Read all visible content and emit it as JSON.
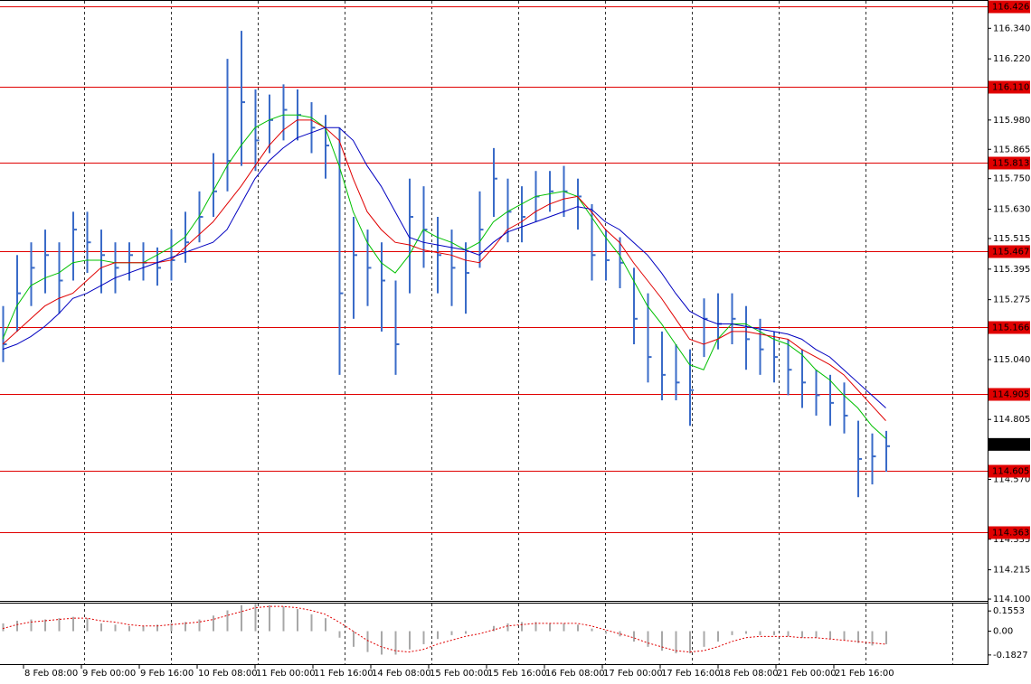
{
  "chart_data": [
    {
      "type": "ohlc",
      "color": "#3a6bc8",
      "high": [
        115.25,
        115.45,
        115.5,
        115.55,
        115.5,
        115.62,
        115.62,
        115.55,
        115.5,
        115.5,
        115.5,
        115.48,
        115.55,
        115.62,
        115.7,
        115.85,
        116.22,
        116.33,
        116.1,
        116.08,
        116.12,
        116.1,
        116.05,
        116.0,
        115.95,
        115.6,
        115.55,
        115.5,
        115.35,
        115.75,
        115.72,
        115.6,
        115.55,
        115.5,
        115.7,
        115.87,
        115.75,
        115.72,
        115.78,
        115.78,
        115.8,
        115.75,
        115.65,
        115.55,
        115.52,
        115.4,
        115.3,
        115.15,
        115.1,
        115.08,
        115.28,
        115.3,
        115.3,
        115.25,
        115.2,
        115.15,
        115.12,
        115.08,
        115.0,
        114.98,
        114.95,
        114.8,
        114.75,
        114.76
      ],
      "low": [
        115.03,
        115.15,
        115.25,
        115.3,
        115.22,
        115.35,
        115.38,
        115.3,
        115.3,
        115.35,
        115.35,
        115.33,
        115.35,
        115.42,
        115.5,
        115.6,
        115.7,
        115.8,
        115.78,
        115.85,
        115.9,
        115.9,
        115.85,
        115.75,
        114.98,
        115.2,
        115.25,
        115.15,
        114.98,
        115.3,
        115.4,
        115.3,
        115.25,
        115.22,
        115.4,
        115.6,
        115.5,
        115.5,
        115.58,
        115.62,
        115.6,
        115.55,
        115.35,
        115.35,
        115.32,
        115.1,
        114.95,
        114.88,
        114.88,
        114.78,
        115.05,
        115.08,
        115.1,
        115.0,
        114.98,
        114.95,
        114.9,
        114.85,
        114.82,
        114.78,
        114.75,
        114.5,
        114.55,
        114.6
      ],
      "close": [
        115.1,
        115.3,
        115.4,
        115.45,
        115.35,
        115.55,
        115.5,
        115.45,
        115.4,
        115.45,
        115.42,
        115.4,
        115.43,
        115.5,
        115.6,
        115.7,
        115.82,
        116.05,
        115.9,
        115.98,
        116.02,
        116.0,
        115.95,
        115.88,
        115.3,
        115.45,
        115.4,
        115.35,
        115.1,
        115.6,
        115.55,
        115.45,
        115.4,
        115.38,
        115.55,
        115.75,
        115.62,
        115.6,
        115.68,
        115.7,
        115.7,
        115.68,
        115.45,
        115.43,
        115.42,
        115.2,
        115.05,
        114.98,
        114.95,
        114.92,
        115.2,
        115.18,
        115.2,
        115.12,
        115.08,
        115.05,
        115.0,
        114.95,
        114.9,
        114.87,
        114.82,
        114.65,
        114.66,
        114.7
      ],
      "series": [
        {
          "color": "#00c000",
          "values": [
            115.12,
            115.25,
            115.33,
            115.36,
            115.38,
            115.42,
            115.43,
            115.43,
            115.42,
            115.42,
            115.42,
            115.45,
            115.48,
            115.52,
            115.6,
            115.7,
            115.8,
            115.88,
            115.95,
            115.98,
            116.0,
            116.0,
            115.99,
            115.95,
            115.8,
            115.62,
            115.5,
            115.42,
            115.38,
            115.45,
            115.55,
            115.52,
            115.5,
            115.47,
            115.5,
            115.58,
            115.62,
            115.65,
            115.68,
            115.69,
            115.7,
            115.68,
            115.6,
            115.52,
            115.45,
            115.35,
            115.25,
            115.18,
            115.1,
            115.02,
            115.0,
            115.12,
            115.18,
            115.18,
            115.15,
            115.12,
            115.1,
            115.06,
            115.0,
            114.96,
            114.9,
            114.85,
            114.78,
            114.73
          ]
        },
        {
          "color": "#e00000",
          "values": [
            115.1,
            115.15,
            115.2,
            115.25,
            115.28,
            115.3,
            115.35,
            115.4,
            115.42,
            115.42,
            115.42,
            115.42,
            115.43,
            115.48,
            115.53,
            115.58,
            115.65,
            115.72,
            115.8,
            115.88,
            115.94,
            115.98,
            115.98,
            115.95,
            115.9,
            115.75,
            115.62,
            115.55,
            115.5,
            115.49,
            115.47,
            115.46,
            115.45,
            115.43,
            115.42,
            115.48,
            115.55,
            115.58,
            115.62,
            115.65,
            115.67,
            115.68,
            115.62,
            115.55,
            115.5,
            115.42,
            115.35,
            115.28,
            115.2,
            115.12,
            115.1,
            115.12,
            115.15,
            115.15,
            115.14,
            115.13,
            115.12,
            115.08,
            115.05,
            115.02,
            114.98,
            114.92,
            114.86,
            114.8
          ]
        },
        {
          "color": "#0000c0",
          "values": [
            115.08,
            115.1,
            115.13,
            115.17,
            115.22,
            115.28,
            115.3,
            115.33,
            115.36,
            115.38,
            115.4,
            115.42,
            115.44,
            115.46,
            115.48,
            115.5,
            115.55,
            115.65,
            115.75,
            115.82,
            115.87,
            115.91,
            115.93,
            115.95,
            115.95,
            115.9,
            115.8,
            115.72,
            115.62,
            115.52,
            115.5,
            115.49,
            115.48,
            115.47,
            115.45,
            115.5,
            115.54,
            115.56,
            115.58,
            115.6,
            115.62,
            115.64,
            115.63,
            115.58,
            115.55,
            115.5,
            115.45,
            115.38,
            115.3,
            115.23,
            115.2,
            115.18,
            115.18,
            115.17,
            115.16,
            115.15,
            115.14,
            115.12,
            115.08,
            115.05,
            115.0,
            114.95,
            114.9,
            114.85
          ]
        }
      ],
      "ylim": [
        114.093,
        116.451
      ],
      "yticks": [
        {
          "value": 116.34,
          "label": "116.340"
        },
        {
          "value": 116.22,
          "label": "116.220"
        },
        {
          "value": 115.98,
          "label": "115.980"
        },
        115.865,
        {
          "value": 115.75,
          "label": "115.750"
        },
        {
          "value": 115.63,
          "label": "115.630"
        },
        115.515,
        115.395,
        115.275,
        {
          "value": 115.04,
          "label": "115.040"
        },
        114.805,
        {
          "value": 114.57,
          "label": "114.570"
        },
        114.335,
        114.215,
        {
          "value": 114.1,
          "label": "114.100"
        }
      ],
      "levels": {
        "color": "#e00000",
        "values": [
          116.426,
          {
            "value": 116.11,
            "label": "116.110"
          },
          115.813,
          115.467,
          115.166,
          114.905,
          114.605,
          114.363
        ]
      },
      "current_price": 114.707,
      "x_labels": [
        "8 Feb 08:00",
        "9 Feb 00:00",
        "9 Feb 16:00",
        "10 Feb 08:00",
        "11 Feb 00:00",
        "11 Feb 16:00",
        "14 Feb 08:00",
        "15 Feb 00:00",
        "15 Feb 16:00",
        "16 Feb 08:00",
        "17 Feb 00:00",
        "17 Feb 16:00",
        "18 Feb 08:00",
        "21 Feb 00:00",
        "21 Feb 16:00"
      ]
    },
    {
      "type": "macd",
      "histogram_color": "#a8a8a8",
      "signal_color": "#e00000",
      "histogram": [
        0.06,
        0.08,
        0.09,
        0.09,
        0.1,
        0.11,
        0.1,
        0.06,
        0.05,
        0.04,
        0.04,
        0.05,
        0.06,
        0.07,
        0.09,
        0.12,
        0.16,
        0.2,
        0.21,
        0.2,
        0.19,
        0.17,
        0.13,
        0.1,
        -0.05,
        -0.12,
        -0.16,
        -0.18,
        -0.18,
        -0.14,
        -0.1,
        -0.06,
        -0.03,
        -0.02,
        0.0,
        0.04,
        0.06,
        0.07,
        0.07,
        0.06,
        0.06,
        0.05,
        0.02,
        -0.02,
        -0.04,
        -0.08,
        -0.12,
        -0.15,
        -0.17,
        -0.17,
        -0.12,
        -0.08,
        -0.03,
        -0.02,
        -0.03,
        -0.03,
        -0.04,
        -0.05,
        -0.05,
        -0.06,
        -0.07,
        -0.09,
        -0.11,
        -0.1
      ],
      "signal": [
        0.02,
        0.05,
        0.07,
        0.08,
        0.09,
        0.1,
        0.1,
        0.08,
        0.07,
        0.05,
        0.04,
        0.04,
        0.05,
        0.06,
        0.07,
        0.09,
        0.12,
        0.15,
        0.18,
        0.19,
        0.19,
        0.18,
        0.16,
        0.13,
        0.07,
        0.0,
        -0.07,
        -0.12,
        -0.15,
        -0.16,
        -0.14,
        -0.1,
        -0.07,
        -0.04,
        -0.02,
        0.01,
        0.04,
        0.05,
        0.06,
        0.06,
        0.06,
        0.06,
        0.04,
        0.01,
        -0.02,
        -0.05,
        -0.09,
        -0.12,
        -0.15,
        -0.16,
        -0.15,
        -0.12,
        -0.08,
        -0.05,
        -0.04,
        -0.04,
        -0.04,
        -0.05,
        -0.05,
        -0.06,
        -0.07,
        -0.08,
        -0.09,
        -0.1
      ],
      "ylim": [
        -0.253,
        0.219
      ],
      "yticks": [
        0.1553,
        {
          "value": 0,
          "label": "0.00"
        },
        -0.1827
      ]
    }
  ]
}
